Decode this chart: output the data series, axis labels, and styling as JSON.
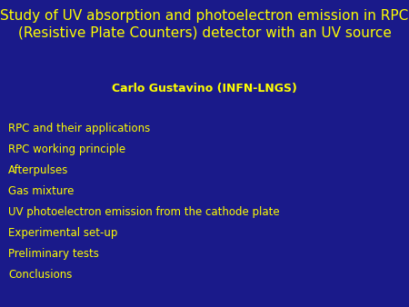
{
  "title_line1": "Study of UV absorption and photoelectron emission in RPC",
  "title_line2": "(Resistive Plate Counters) detector with an UV source",
  "author": "Carlo Gustavino (INFN-LNGS)",
  "bullet_items": [
    "RPC and their applications",
    "RPC working principle",
    "Afterpulses",
    "Gas mixture",
    "UV photoelectron emission from the cathode plate",
    "Experimental set-up",
    "Preliminary tests",
    "Conclusions"
  ],
  "background_color": "#1a1a8a",
  "title_color": "#ffff00",
  "author_color": "#ffff00",
  "bullet_color": "#ffff00",
  "title_fontsize": 11.0,
  "author_fontsize": 9.0,
  "bullet_fontsize": 8.5,
  "fig_width": 4.5,
  "fig_height": 3.38,
  "dpi": 100
}
